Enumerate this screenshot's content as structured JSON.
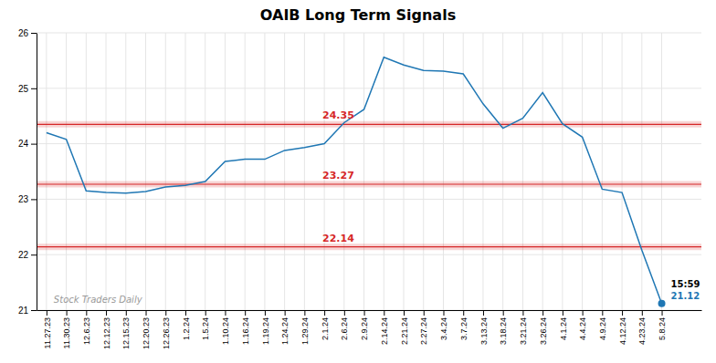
{
  "chart_data": {
    "type": "line",
    "title": "OAIB Long Term Signals",
    "categories": [
      "11.27.23",
      "11.30.23",
      "12.6.23",
      "12.12.23",
      "12.15.23",
      "12.20.23",
      "12.26.23",
      "1.2.24",
      "1.5.24",
      "1.10.24",
      "1.16.24",
      "1.19.24",
      "1.24.24",
      "1.29.24",
      "2.1.24",
      "2.6.24",
      "2.9.24",
      "2.14.24",
      "2.21.24",
      "2.27.24",
      "3.4.24",
      "3.7.24",
      "3.13.24",
      "3.18.24",
      "3.21.24",
      "3.26.24",
      "4.1.24",
      "4.4.24",
      "4.9.24",
      "4.12.24",
      "4.23.24",
      "5.8.24"
    ],
    "values": [
      24.2,
      24.08,
      23.15,
      23.12,
      23.11,
      23.14,
      23.22,
      23.25,
      23.32,
      23.68,
      23.72,
      23.72,
      23.88,
      23.93,
      24.0,
      24.38,
      24.62,
      25.56,
      25.42,
      25.32,
      25.31,
      25.26,
      24.72,
      24.28,
      24.46,
      24.92,
      24.36,
      24.12,
      23.18,
      23.12,
      22.08,
      21.12
    ],
    "ylim": [
      21,
      26
    ],
    "yticks": [
      21,
      22,
      23,
      24,
      25,
      26
    ],
    "grid": true,
    "reference_lines": [
      {
        "value": 24.35,
        "label": "24.35"
      },
      {
        "value": 23.27,
        "label": "23.27"
      },
      {
        "value": 22.14,
        "label": "22.14"
      }
    ],
    "endpoint": {
      "value": 21.12,
      "time": "15:59",
      "label": "21.12"
    },
    "watermark": "Stock Traders Daily"
  }
}
